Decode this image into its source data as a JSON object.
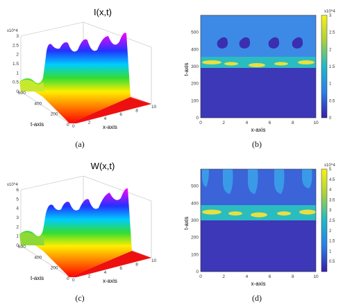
{
  "panels": [
    {
      "id": "a",
      "title": "I(x,t)",
      "caption": "(a)",
      "exponent": "x10^4",
      "zticks": [
        "0",
        "0.5",
        "1",
        "1.5",
        "2",
        "2.5",
        "3"
      ],
      "tticks": [
        "0",
        "200",
        "400",
        "600"
      ],
      "xticks": [
        "0",
        "2",
        "4",
        "6",
        "8",
        "10"
      ],
      "t_label": "t-axis",
      "x_label": "x-axis"
    },
    {
      "id": "b",
      "caption": "(b)",
      "exponent": "x10^4",
      "yticks": [
        "0",
        "100",
        "200",
        "300",
        "400",
        "500"
      ],
      "xticks": [
        "0",
        "2",
        "4",
        "6",
        "8",
        "10"
      ],
      "cbar_ticks": [
        "0",
        "0.5",
        "1",
        "1.5",
        "2",
        "2.5",
        "3"
      ],
      "y_label": "t-axis",
      "x_label": "x-axis"
    },
    {
      "id": "c",
      "title": "W(x,t)",
      "caption": "(c)",
      "exponent": "x10^4",
      "zticks": [
        "0",
        "1",
        "2",
        "3",
        "4",
        "5",
        "6"
      ],
      "tticks": [
        "0",
        "200",
        "400",
        "600"
      ],
      "xticks": [
        "0",
        "2",
        "4",
        "6",
        "8",
        "10"
      ],
      "t_label": "t-axis",
      "x_label": "x-axis"
    },
    {
      "id": "d",
      "caption": "(d)",
      "exponent": "x10^4",
      "yticks": [
        "0",
        "100",
        "200",
        "300",
        "400",
        "500"
      ],
      "xticks": [
        "0",
        "2",
        "4",
        "6",
        "8",
        "10"
      ],
      "cbar_ticks": [
        "0.5",
        "1",
        "1.5",
        "2",
        "2.5",
        "3",
        "3.5",
        "4",
        "4.5",
        "5"
      ],
      "y_label": "t-axis",
      "x_label": "x-axis"
    }
  ]
}
